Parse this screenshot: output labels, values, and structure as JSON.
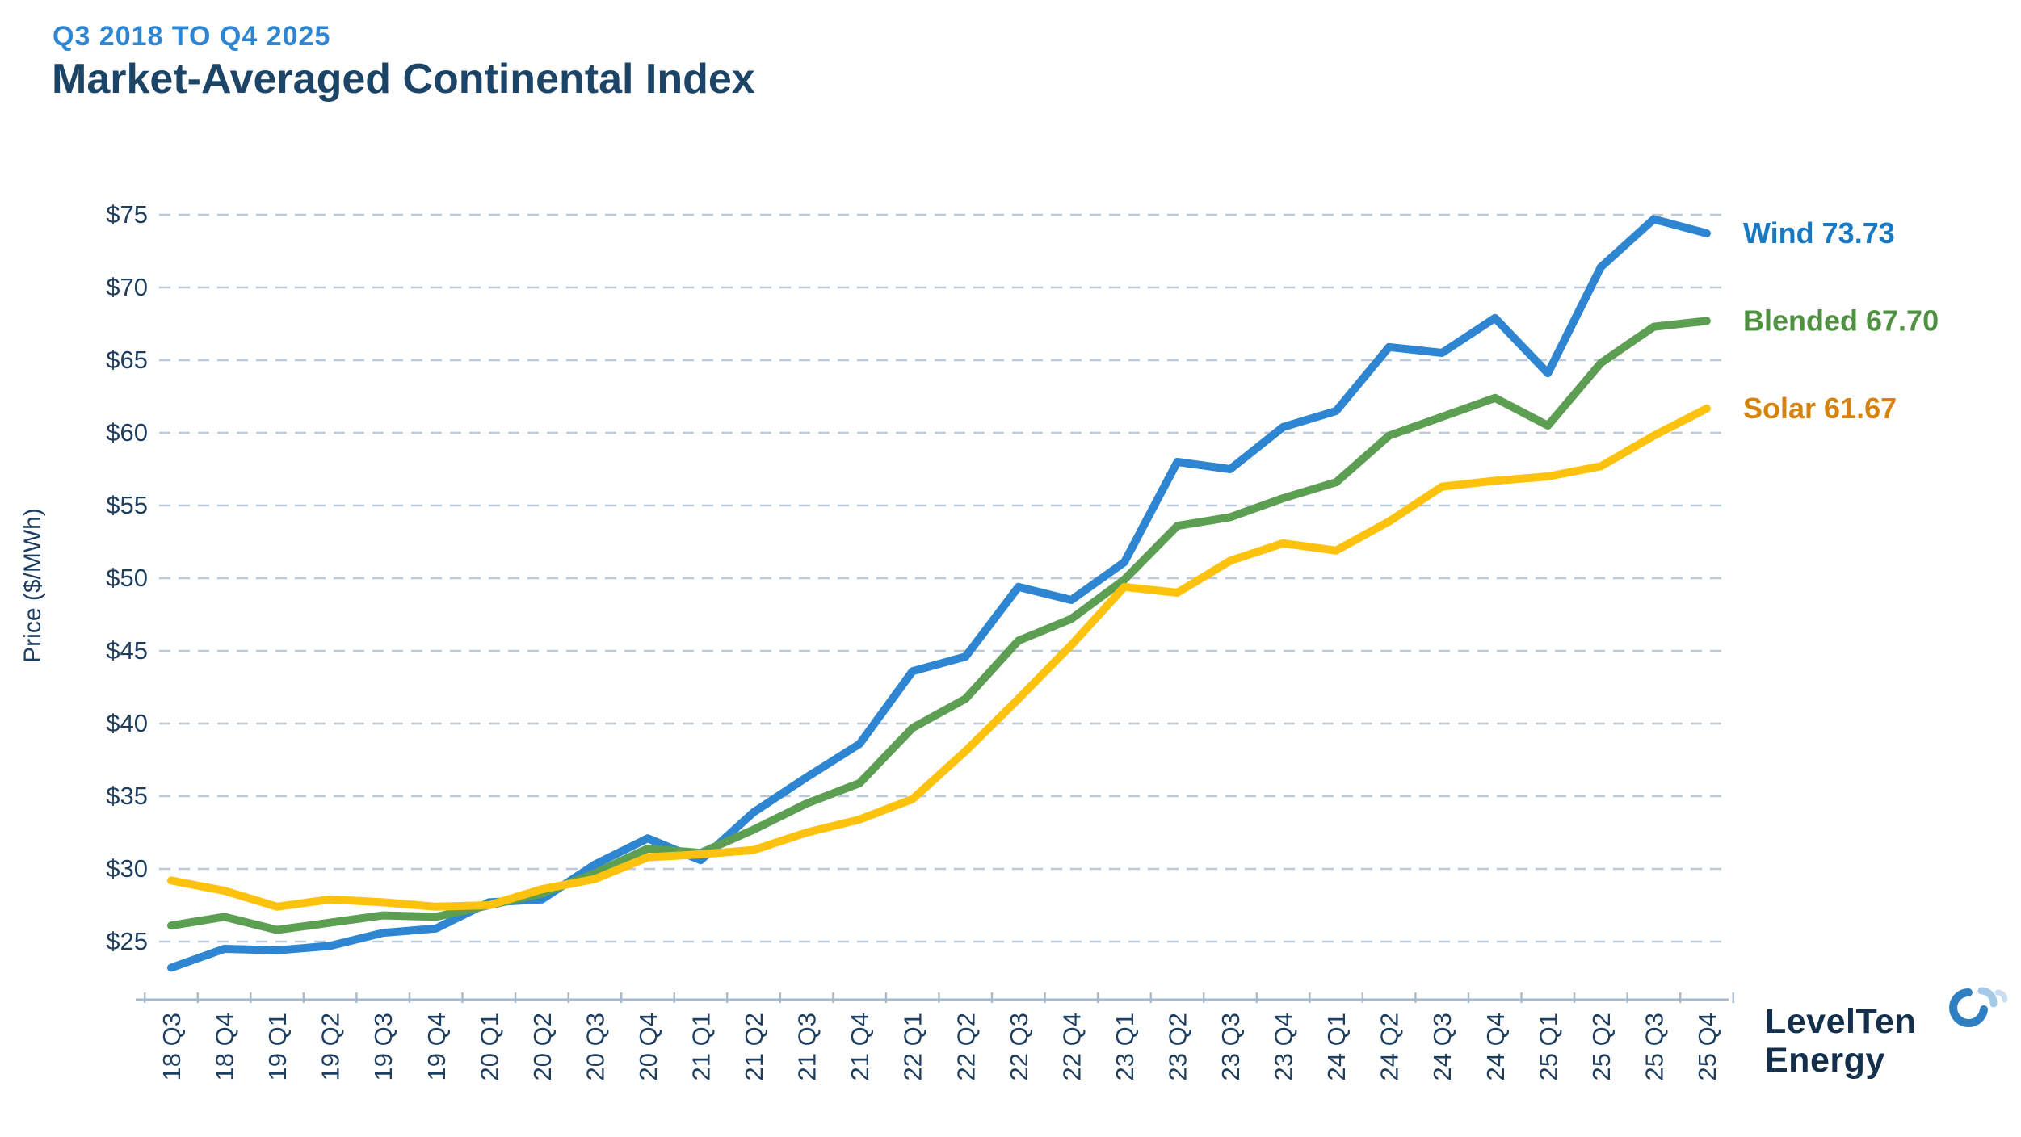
{
  "header": {
    "subtitle": "Q3 2018 TO Q4 2025",
    "title": "Market-Averaged Continental Index"
  },
  "logo": {
    "line1": "LevelTen",
    "line2": "Energy"
  },
  "colors": {
    "title_navy": "#1c4467",
    "subtitle_blue": "#2e86d2",
    "tick_label_navy": "#1e3e5f",
    "gridline": "#bcc9d6",
    "axis_line": "#a6bacb",
    "wind_line": "#2e86d2",
    "blended_line": "#5c9e52",
    "solar_line": "#fdc20e",
    "wind_label": "#1879c2",
    "blended_label": "#4e9140",
    "solar_label": "#d5830e",
    "logo_navy": "#132f4b",
    "logo_arc_dark": "#2f80c3",
    "logo_arc_light": "#a5c9e8",
    "logo_arc_pale": "#cadef1"
  },
  "chart_data": {
    "type": "line",
    "title": "Market-Averaged Continental Index",
    "subtitle": "Q3 2018 TO Q4 2025",
    "xlabel": "",
    "ylabel": "Price ($/MWh)",
    "ylim": [
      21,
      77.5
    ],
    "ytick_prefix": "$",
    "yticks": [
      75,
      70,
      65,
      60,
      55,
      50,
      45,
      40,
      35,
      30,
      25
    ],
    "grid": "horizontal-dashed",
    "legend_position": "right-of-line-ends",
    "categories": [
      "18 Q3",
      "18 Q4",
      "19 Q1",
      "19 Q2",
      "19 Q3",
      "19 Q4",
      "20 Q1",
      "20 Q2",
      "20 Q3",
      "20 Q4",
      "21 Q1",
      "21 Q2",
      "21 Q3",
      "21 Q4",
      "22 Q1",
      "22 Q2",
      "22 Q3",
      "22 Q4",
      "23 Q1",
      "23 Q2",
      "23 Q3",
      "23 Q4",
      "24 Q1",
      "24 Q2",
      "24 Q3",
      "24 Q4",
      "25 Q1",
      "25 Q2",
      "25 Q3",
      "25 Q4"
    ],
    "series": [
      {
        "name": "Wind",
        "legend_label": "Wind  73.73",
        "final_value": 73.73,
        "values": [
          23.2,
          24.5,
          24.4,
          24.7,
          25.6,
          25.9,
          27.7,
          27.9,
          30.3,
          32.1,
          30.6,
          33.9,
          36.3,
          38.6,
          43.6,
          44.6,
          49.4,
          48.5,
          51.1,
          58.0,
          57.5,
          60.4,
          61.5,
          65.9,
          65.5,
          67.9,
          64.1,
          71.4,
          74.7,
          73.73
        ]
      },
      {
        "name": "Blended",
        "legend_label": "Blended 67.70",
        "final_value": 67.7,
        "values": [
          26.1,
          26.7,
          25.8,
          26.3,
          26.8,
          26.7,
          27.5,
          28.3,
          29.7,
          31.4,
          31.1,
          32.7,
          34.5,
          35.9,
          39.7,
          41.7,
          45.7,
          47.2,
          49.9,
          53.6,
          54.2,
          55.5,
          56.6,
          59.8,
          61.1,
          62.4,
          60.5,
          64.8,
          67.3,
          67.7
        ]
      },
      {
        "name": "Solar",
        "legend_label": "Solar 61.67",
        "final_value": 61.67,
        "values": [
          29.2,
          28.5,
          27.4,
          27.9,
          27.7,
          27.4,
          27.5,
          28.6,
          29.3,
          30.8,
          31.0,
          31.3,
          32.5,
          33.4,
          34.8,
          38.1,
          41.7,
          45.4,
          49.4,
          49.0,
          51.2,
          52.4,
          51.9,
          53.9,
          56.3,
          56.7,
          57.0,
          57.7,
          59.8,
          61.67
        ]
      }
    ]
  }
}
